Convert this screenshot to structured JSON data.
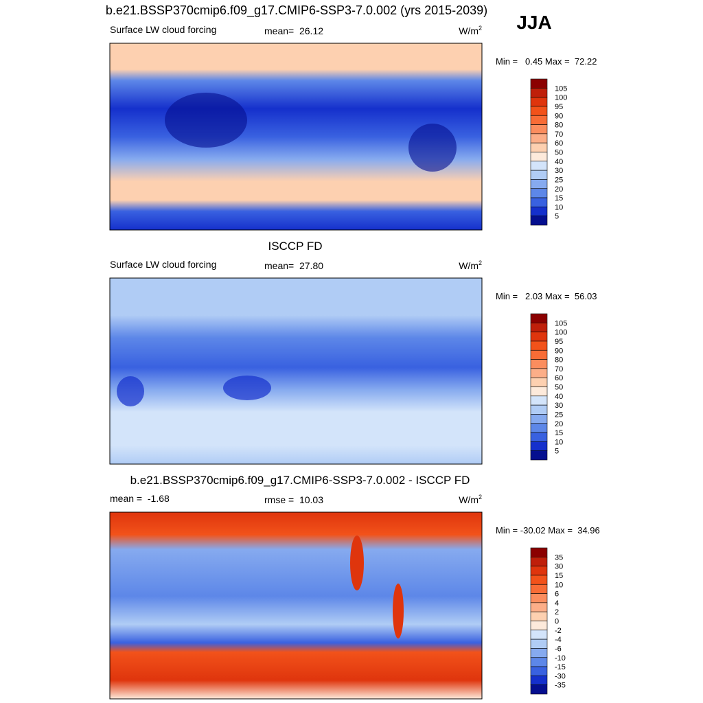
{
  "header": {
    "title": "b.e21.BSSP370cmip6.f09_g17.CMIP6-SSP3-7.0.002 (yrs 2015-2039)",
    "season": "JJA"
  },
  "panels": [
    {
      "title": null,
      "left": "Surface LW cloud forcing",
      "center": "mean=  26.12",
      "units": "W/m",
      "units_exp": "2",
      "minmax": "Min =   0.45 Max =  72.22",
      "levels": [
        105,
        100,
        95,
        90,
        80,
        70,
        60,
        50,
        40,
        30,
        25,
        20,
        15,
        10,
        5
      ],
      "colors": [
        "#8b0000",
        "#bf1f0a",
        "#df350d",
        "#f2521a",
        "#f86c36",
        "#fb8d5e",
        "#fcae88",
        "#fdd0b0",
        "#fdeadb",
        "#d3e4fa",
        "#b0ccf5",
        "#86aaef",
        "#5d87e8",
        "#3961e0",
        "#1530cc",
        "#050f8f"
      ]
    },
    {
      "title": "ISCCP FD",
      "left": "Surface LW cloud forcing",
      "center": "mean=  27.80",
      "units": "W/m",
      "units_exp": "2",
      "minmax": "Min =   2.03 Max =  56.03",
      "levels": [
        105,
        100,
        95,
        90,
        80,
        70,
        60,
        50,
        40,
        30,
        25,
        20,
        15,
        10,
        5
      ],
      "colors": [
        "#8b0000",
        "#bf1f0a",
        "#df350d",
        "#f2521a",
        "#f86c36",
        "#fb8d5e",
        "#fcae88",
        "#fdd0b0",
        "#fdeadb",
        "#d3e4fa",
        "#b0ccf5",
        "#86aaef",
        "#5d87e8",
        "#3961e0",
        "#1530cc",
        "#050f8f"
      ]
    },
    {
      "title": "b.e21.BSSP370cmip6.f09_g17.CMIP6-SSP3-7.0.002 - ISCCP FD",
      "left": "mean =  -1.68",
      "center": "rmse =  10.03",
      "units": "W/m",
      "units_exp": "2",
      "minmax": "Min = -30.02 Max =  34.96",
      "levels": [
        35,
        30,
        15,
        10,
        6,
        4,
        2,
        0,
        -2,
        -4,
        -6,
        -10,
        -15,
        -30,
        -35
      ],
      "colors": [
        "#8b0000",
        "#bf1f0a",
        "#df350d",
        "#f2521a",
        "#f86c36",
        "#fb8d5e",
        "#fcae88",
        "#fdd0b0",
        "#fdeadb",
        "#d3e4fa",
        "#b0ccf5",
        "#86aaef",
        "#5d87e8",
        "#3961e0",
        "#1530cc",
        "#050f8f"
      ]
    }
  ]
}
